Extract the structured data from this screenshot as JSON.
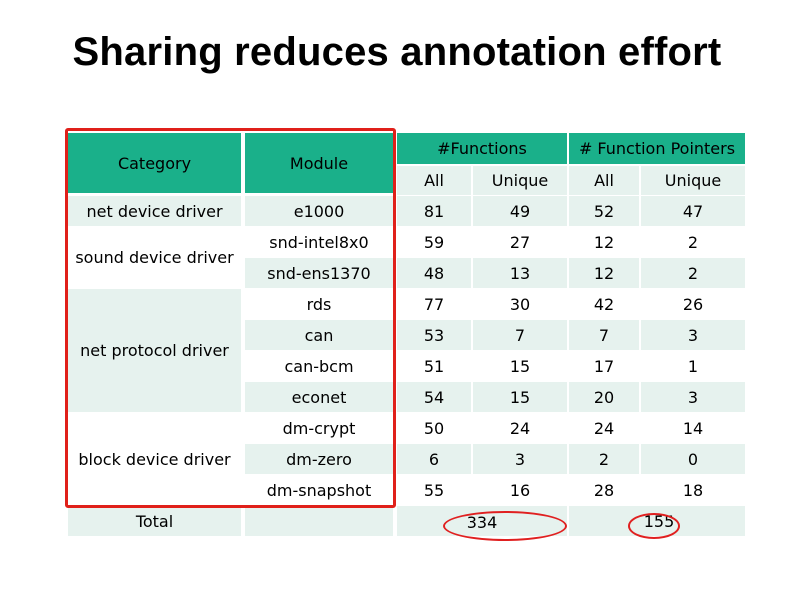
{
  "title": "Sharing reduces annotation effort",
  "table": {
    "headers": {
      "category": "Category",
      "module": "Module",
      "functions": "#Functions",
      "function_pointers": "# Function Pointers",
      "all": "All",
      "unique": "Unique"
    },
    "categories": [
      "net device driver",
      "sound device driver",
      "net protocol driver",
      "block device driver"
    ],
    "rows": [
      {
        "module": "e1000",
        "f_all": "81",
        "f_unique": "49",
        "fp_all": "52",
        "fp_unique": "47"
      },
      {
        "module": "snd-intel8x0",
        "f_all": "59",
        "f_unique": "27",
        "fp_all": "12",
        "fp_unique": "2"
      },
      {
        "module": "snd-ens1370",
        "f_all": "48",
        "f_unique": "13",
        "fp_all": "12",
        "fp_unique": "2"
      },
      {
        "module": "rds",
        "f_all": "77",
        "f_unique": "30",
        "fp_all": "42",
        "fp_unique": "26"
      },
      {
        "module": "can",
        "f_all": "53",
        "f_unique": "7",
        "fp_all": "7",
        "fp_unique": "3"
      },
      {
        "module": "can-bcm",
        "f_all": "51",
        "f_unique": "15",
        "fp_all": "17",
        "fp_unique": "1"
      },
      {
        "module": "econet",
        "f_all": "54",
        "f_unique": "15",
        "fp_all": "20",
        "fp_unique": "3"
      },
      {
        "module": "dm-crypt",
        "f_all": "50",
        "f_unique": "24",
        "fp_all": "24",
        "fp_unique": "14"
      },
      {
        "module": "dm-zero",
        "f_all": "6",
        "f_unique": "3",
        "fp_all": "2",
        "fp_unique": "0"
      },
      {
        "module": "dm-snapshot",
        "f_all": "55",
        "f_unique": "16",
        "fp_all": "28",
        "fp_unique": "18"
      }
    ],
    "total": {
      "label": "Total",
      "functions_unique": "334",
      "fp_unique": "155"
    }
  },
  "colors": {
    "header": "#1ab08a",
    "row_light": "#e6f2ee",
    "highlight": "#e0201a"
  }
}
